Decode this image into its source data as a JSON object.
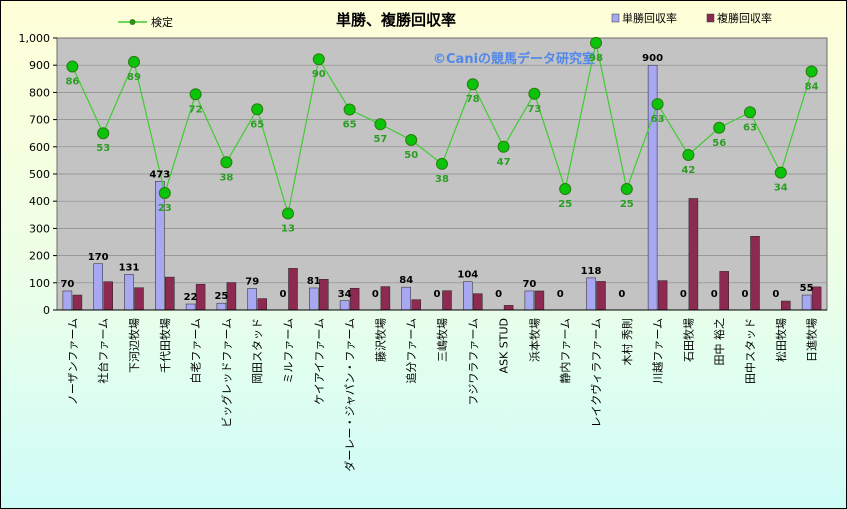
{
  "chart_data": {
    "type": "bar",
    "title": "単勝、複勝回収率",
    "watermark": "©Caniの競馬データ研究室",
    "ylim": [
      0,
      1000
    ],
    "yticks": [
      "0",
      "100",
      "200",
      "300",
      "400",
      "500",
      "600",
      "700",
      "800",
      "900",
      "1,000"
    ],
    "categories": [
      "ノーザンファーム",
      "社台ファーム",
      "下河辺牧場",
      "千代田牧場",
      "白老ファーム",
      "ビッグレッドファーム",
      "岡田スタッド",
      "ミルファーム",
      "ケイアイファーム",
      "ダーレー・ジャパン・ファーム",
      "藤沢牧場",
      "追分ファーム",
      "三嶋牧場",
      "フジワラファーム",
      "ASK STUD",
      "浜本牧場",
      "静内ファーム",
      "レイクヴィラファーム",
      "木村 秀則",
      "川越ファーム",
      "石田牧場",
      "田中 裕之",
      "田中スタッド",
      "松田牧場",
      "日進牧場"
    ],
    "series": [
      {
        "name": "単勝回収率",
        "color": "#a7a7f2",
        "values": [
          70,
          170,
          131,
          473,
          22,
          25,
          79,
          0,
          81,
          34,
          0,
          84,
          0,
          104,
          0,
          70,
          0,
          118,
          0,
          900,
          0,
          0,
          0,
          0,
          55
        ]
      },
      {
        "name": "複勝回収率",
        "color": "#8d2a52",
        "values": [
          55,
          104,
          82,
          121,
          95,
          101,
          42,
          153,
          113,
          80,
          86,
          38,
          71,
          60,
          17,
          70,
          0,
          105,
          0,
          108,
          410,
          142,
          271,
          33,
          85
        ]
      }
    ],
    "line_series": {
      "name": "検定",
      "color": "#3fcc30",
      "marker_color": "#2e8f14",
      "values": [
        86,
        53,
        89,
        23,
        72,
        38,
        65,
        13,
        90,
        65,
        57,
        50,
        38,
        78,
        47,
        73,
        25,
        98,
        25,
        63,
        42,
        56,
        63,
        34,
        84
      ],
      "plotted": [
        895,
        650,
        912,
        430,
        793,
        543,
        738,
        355,
        922,
        737,
        683,
        625,
        537,
        830,
        600,
        795,
        445,
        982,
        445,
        757,
        570,
        670,
        727,
        505,
        877
      ]
    },
    "bar_labels": [
      "70",
      "170",
      "131",
      "473",
      "22",
      "25",
      "79",
      "0",
      "81",
      "34",
      "0",
      "84",
      "0",
      "104",
      "0",
      "70",
      "0",
      "118",
      "0",
      "900",
      "0",
      "0",
      "0",
      "0",
      "55"
    ],
    "legend_placement": "top",
    "grid": true
  }
}
